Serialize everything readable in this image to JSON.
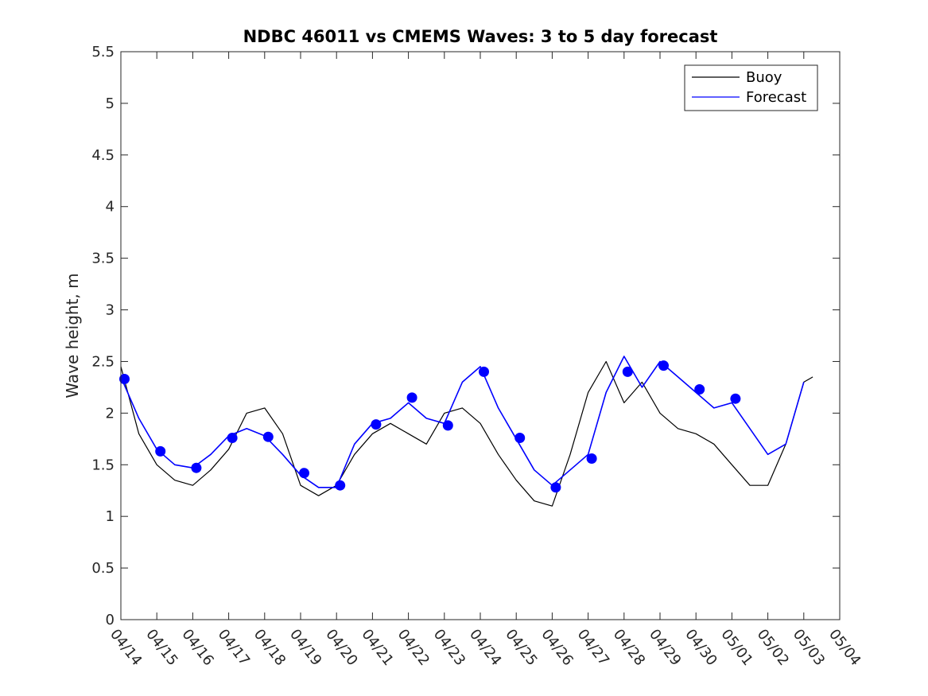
{
  "chart_data": {
    "type": "line",
    "title": "NDBC 46011 vs CMEMS Waves: 3 to 5 day forecast",
    "xlabel": "",
    "ylabel": "Wave height, m",
    "xlim": [
      0,
      20
    ],
    "ylim": [
      0,
      5.5
    ],
    "y_ticks": [
      "0",
      "0.5",
      "1",
      "1.5",
      "2",
      "2.5",
      "3",
      "3.5",
      "4",
      "4.5",
      "5",
      "5.5"
    ],
    "x_ticks": [
      "04/14",
      "04/15",
      "04/16",
      "04/17",
      "04/18",
      "04/19",
      "04/20",
      "04/21",
      "04/22",
      "04/23",
      "04/24",
      "04/25",
      "04/26",
      "04/27",
      "04/28",
      "04/29",
      "04/30",
      "05/01",
      "05/02",
      "05/03",
      "05/04"
    ],
    "legend": {
      "placement": "top-right",
      "entries": [
        "Buoy",
        "Forecast"
      ]
    },
    "colors": {
      "buoy": "#000000",
      "forecast": "#0000ff"
    },
    "series": [
      {
        "name": "Buoy",
        "x": [
          0,
          0.5,
          1,
          1.5,
          2,
          2.5,
          3,
          3.5,
          4,
          4.5,
          5,
          5.5,
          6,
          6.5,
          7,
          7.5,
          8,
          8.5,
          9,
          9.5,
          10,
          10.5,
          11,
          11.5,
          12,
          12.5,
          13,
          13.5,
          14,
          14.5,
          15,
          15.5,
          16,
          16.5,
          17,
          17.5,
          18,
          18.5,
          19,
          19.25
        ],
        "y": [
          2.45,
          1.8,
          1.5,
          1.35,
          1.3,
          1.45,
          1.65,
          2.0,
          2.05,
          1.8,
          1.3,
          1.2,
          1.3,
          1.6,
          1.8,
          1.9,
          1.8,
          1.7,
          2.0,
          2.05,
          1.9,
          1.6,
          1.35,
          1.15,
          1.1,
          1.6,
          2.2,
          2.5,
          2.1,
          2.3,
          2.0,
          1.85,
          1.8,
          1.7,
          1.5,
          1.3,
          1.3,
          1.7,
          2.3,
          2.35
        ]
      },
      {
        "name": "Forecast",
        "x": [
          0,
          0.5,
          1,
          1.5,
          2,
          2.5,
          3,
          3.5,
          4,
          4.5,
          5,
          5.5,
          6,
          6.5,
          7,
          7.5,
          8,
          8.5,
          9,
          9.5,
          10,
          10.5,
          11,
          11.5,
          12,
          12.5,
          13,
          13.5,
          14,
          14.5,
          15,
          15.5,
          16,
          16.5,
          17,
          17.5,
          18,
          18.5,
          19
        ],
        "y": [
          2.35,
          1.95,
          1.65,
          1.5,
          1.47,
          1.6,
          1.78,
          1.85,
          1.78,
          1.6,
          1.4,
          1.28,
          1.28,
          1.7,
          1.9,
          1.95,
          2.1,
          1.95,
          1.9,
          2.3,
          2.45,
          2.05,
          1.75,
          1.45,
          1.3,
          1.45,
          1.6,
          2.2,
          2.55,
          2.25,
          2.5,
          2.35,
          2.2,
          2.05,
          2.1,
          1.85,
          1.6,
          1.7,
          2.3
        ]
      }
    ],
    "forecast_markers": {
      "x": [
        0.1,
        1.1,
        2.1,
        3.1,
        4.1,
        5.1,
        6.1,
        7.1,
        8.1,
        9.1,
        10.1,
        11.1,
        12.1,
        13.1,
        14.1,
        15.1,
        16.1,
        17.1
      ],
      "y": [
        2.33,
        1.63,
        1.47,
        1.76,
        1.77,
        1.42,
        1.3,
        1.89,
        2.15,
        1.88,
        2.4,
        1.76,
        1.28,
        1.56,
        2.4,
        2.46,
        2.23,
        2.14
      ]
    }
  }
}
